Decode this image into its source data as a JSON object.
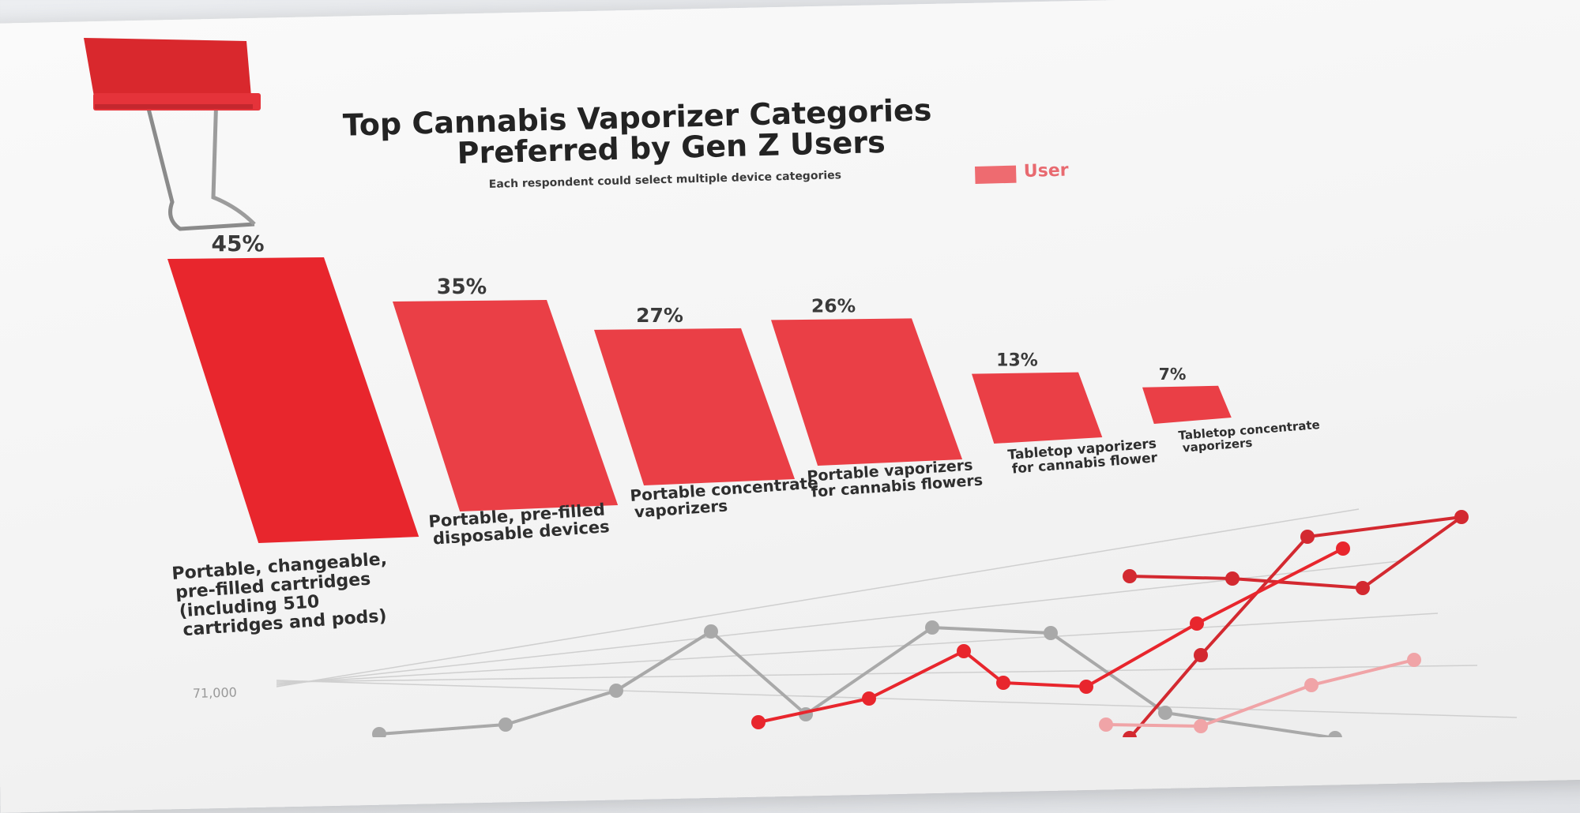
{
  "chart_data": [
    {
      "type": "bar",
      "title": "Top Cannabis Vaporizer Categories Preferred by Gen Z Users",
      "title_lines": [
        "Top Cannabis Vaporizer Categories",
        "Preferred by Gen Z Users"
      ],
      "subtitle": "Each respondent could select multiple device categories",
      "legend": "top-right",
      "series": [
        {
          "name": "User",
          "color": "#e8262d",
          "legend_color": "#ee6b70",
          "values": [
            45,
            35,
            27,
            26,
            13,
            7
          ]
        }
      ],
      "categories": [
        "Portable, changeable, pre-filled cartridges (including 510 cartridges and pods)",
        "Portable, pre-filled disposable devices",
        "Portable concentrate vaporizers",
        "Portable vaporizers for cannabis flowers",
        "Tabletop vaporizers for cannabis flower",
        "Tabletop concentrate vaporizers"
      ],
      "category_lines": [
        [
          "Portable, changeable,",
          "pre-filled cartridges",
          "(including 510",
          "cartridges and pods)"
        ],
        [
          "Portable, pre-filled",
          "disposable devices"
        ],
        [
          "Portable concentrate",
          "vaporizers"
        ],
        [
          "Portable vaporizers",
          "for cannabis flowers"
        ],
        [
          "Tabletop vaporizers",
          "for cannabis flower"
        ],
        [
          "Tabletop concentrate",
          "vaporizers"
        ]
      ],
      "value_labels": [
        "45%",
        "35%",
        "27%",
        "26%",
        "13%",
        "7%"
      ],
      "ylim": [
        0,
        45
      ]
    },
    {
      "type": "line",
      "title": "",
      "y_tick_labels": [
        "71,000"
      ],
      "grid": true,
      "series": [
        {
          "color": "#a9a9a9",
          "values": [
            2,
            4,
            8,
            3,
            1,
            7,
            6,
            3,
            1
          ]
        },
        {
          "color": "#d32930",
          "values": [
            1,
            3,
            5,
            4,
            9,
            8,
            11
          ]
        },
        {
          "color": "#e8262d",
          "values": [
            1,
            2,
            2,
            1,
            4,
            6,
            9
          ]
        },
        {
          "color": "#f0a4a7",
          "values": [
            1,
            1,
            2,
            4,
            5
          ]
        }
      ]
    }
  ]
}
